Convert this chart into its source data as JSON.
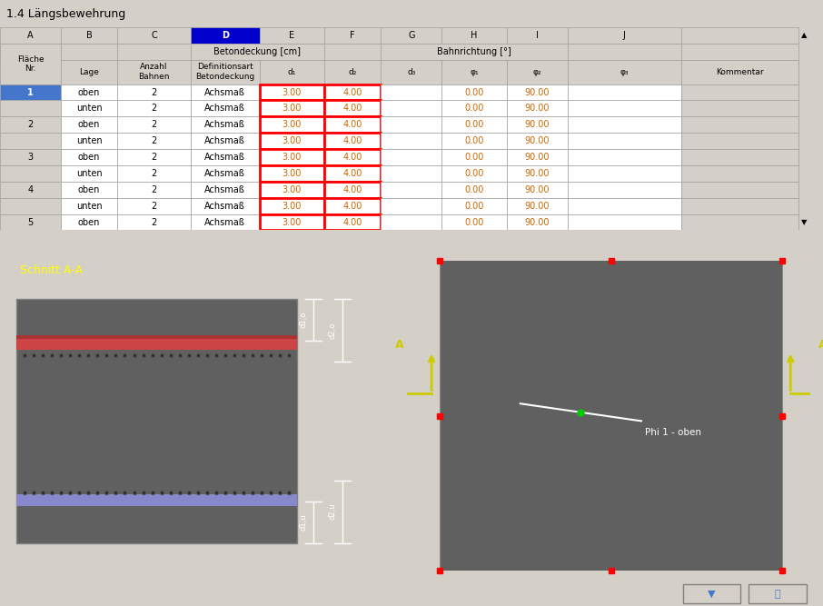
{
  "title": "1.4 Längsbewehrung",
  "title_bg": "#d4d0c8",
  "header_bg": "#d4d0c8",
  "col_D_bg": "#0000cc",
  "col_D_text": "#ffffff",
  "selected_cell_border": "#ff0000",
  "table_bg": "#ffffff",
  "alt_row_bg": "#f0f0f0",
  "col_headers_row1": [
    "A",
    "B",
    "C",
    "D",
    "E",
    "F",
    "G",
    "H",
    "I",
    "J"
  ],
  "col_headers_row2_left": [
    "Fläche\nNr.",
    "Lage",
    "Anzahl\nBahnen",
    "Definitionsart\nBetondeckung",
    "d₁",
    "d₂",
    "d₃",
    "φ₁",
    "φ₂",
    "φ₃",
    "Kommentar"
  ],
  "merged_header1": "Betondeckung [cm]",
  "merged_header2": "Bahnrichtung [°]",
  "rows": [
    [
      "1",
      "oben",
      "2",
      "Achsmaß",
      "3.00",
      "4.00",
      "",
      "0.00",
      "90.00",
      "",
      ""
    ],
    [
      "",
      "unten",
      "2",
      "Achsmaß",
      "3.00",
      "4.00",
      "",
      "0.00",
      "90.00",
      "",
      ""
    ],
    [
      "2",
      "oben",
      "2",
      "Achsmaß",
      "3.00",
      "4.00",
      "",
      "0.00",
      "90.00",
      "",
      ""
    ],
    [
      "",
      "unten",
      "2",
      "Achsmaß",
      "3.00",
      "4.00",
      "",
      "0.00",
      "90.00",
      "",
      ""
    ],
    [
      "3",
      "oben",
      "2",
      "Achsmaß",
      "3.00",
      "4.00",
      "",
      "0.00",
      "90.00",
      "",
      ""
    ],
    [
      "",
      "unten",
      "2",
      "Achsmaß",
      "3.00",
      "4.00",
      "",
      "0.00",
      "90.00",
      "",
      ""
    ],
    [
      "4",
      "oben",
      "2",
      "Achsmaß",
      "3.00",
      "4.00",
      "",
      "0.00",
      "90.00",
      "",
      ""
    ],
    [
      "",
      "unten",
      "2",
      "Achsmaß",
      "3.00",
      "4.00",
      "",
      "0.00",
      "90.00",
      "",
      ""
    ],
    [
      "5",
      "oben",
      "2",
      "Achsmaß",
      "3.00",
      "4.00",
      "",
      "0.00",
      "90.00",
      "",
      ""
    ]
  ],
  "bottom_panel_bg": "#c0c0c0",
  "left_panel_bg": "#000000",
  "right_panel_bg": "#505050",
  "schnitt_label": "Schnitt A-A",
  "schnitt_color": "#ffff00",
  "phi_label": "Phi 1 - oben",
  "A_label": "A"
}
